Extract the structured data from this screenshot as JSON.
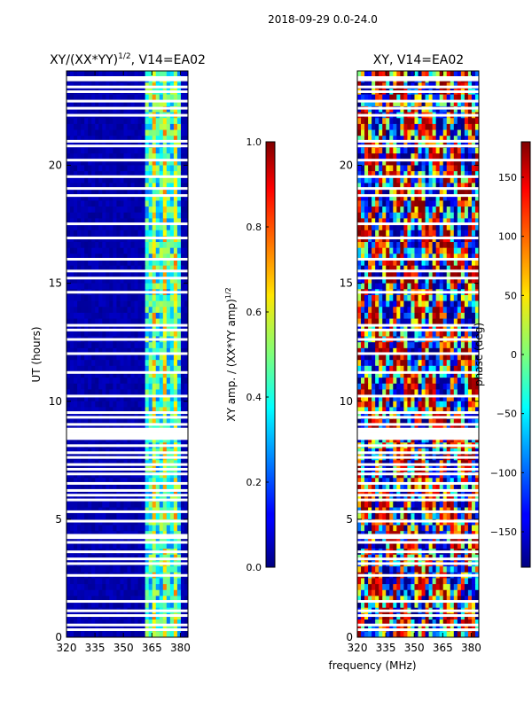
{
  "suptitle": "2018-09-29 0.0-24.0",
  "xlabel": "frequency (MHz)",
  "colors": {
    "low": "#00008f",
    "high": "#7f0000"
  },
  "chart_data": [
    {
      "type": "heatmap",
      "title": "XY/(XX*YY)",
      "title_sup": "1/2",
      "title_suffix": ", V14=EA02",
      "ylabel": "UT (hours)",
      "xlim": [
        320,
        384
      ],
      "ylim": [
        0,
        24
      ],
      "xticks": [
        "320",
        "335",
        "350",
        "365",
        "380"
      ],
      "xtick_values": [
        320,
        335,
        350,
        365,
        380
      ],
      "yticks": [
        "0",
        "5",
        "10",
        "15",
        "20"
      ],
      "ytick_values": [
        0,
        5,
        10,
        15,
        20
      ],
      "colorbar": {
        "label": "XY amp. / (XX*YY amp)",
        "label_sup": "1/2",
        "range": [
          0.0,
          1.0
        ],
        "ticks": [
          "0.0",
          "0.2",
          "0.4",
          "0.6",
          "0.8",
          "1.0"
        ],
        "tick_values": [
          0.0,
          0.2,
          0.4,
          0.6,
          0.8,
          1.0
        ]
      },
      "flagged_hours": [
        0.3,
        0.5,
        0.9,
        1.1,
        1.5,
        2.6,
        3.1,
        3.3,
        3.6,
        4.0,
        4.2,
        4.3,
        4.9,
        5.3,
        5.8,
        6.0,
        6.2,
        6.5,
        6.9,
        7.1,
        7.3,
        7.6,
        7.8,
        8.1,
        8.4,
        8.5,
        8.6,
        8.7,
        8.8,
        9.0,
        9.3,
        9.5,
        10.2,
        11.2,
        12.0,
        12.6,
        13.0,
        13.2,
        14.6,
        15.2,
        15.5,
        16.0,
        16.9,
        17.5,
        18.7,
        19.0,
        19.5,
        20.2,
        20.8,
        21.0,
        22.1,
        22.4,
        22.7,
        23.1,
        23.3,
        23.6,
        23.7
      ],
      "bright_band_MHz": [
        362,
        380
      ]
    },
    {
      "type": "heatmap",
      "title": "XY, V14=EA02",
      "ylabel": "",
      "xlim": [
        320,
        384
      ],
      "ylim": [
        0,
        24
      ],
      "xticks": [
        "320",
        "335",
        "350",
        "365",
        "380"
      ],
      "xtick_values": [
        320,
        335,
        350,
        365,
        380
      ],
      "yticks": [
        "0",
        "5",
        "10",
        "15",
        "20"
      ],
      "ytick_values": [
        0,
        5,
        10,
        15,
        20
      ],
      "colorbar": {
        "label": "phase (deg)",
        "range": [
          -180,
          180
        ],
        "ticks": [
          "−150",
          "−100",
          "−50",
          "0",
          "50",
          "100",
          "150"
        ],
        "tick_values": [
          -150,
          -100,
          -50,
          0,
          50,
          100,
          150
        ]
      },
      "flagged_hours": [
        0.3,
        0.5,
        0.9,
        1.1,
        1.5,
        2.6,
        3.1,
        3.3,
        3.6,
        4.0,
        4.2,
        4.3,
        4.9,
        5.3,
        5.8,
        6.0,
        6.2,
        6.5,
        6.9,
        7.1,
        7.3,
        7.6,
        7.8,
        8.1,
        8.4,
        8.5,
        8.6,
        8.7,
        8.8,
        9.0,
        9.3,
        9.5,
        10.2,
        11.2,
        12.0,
        12.6,
        13.0,
        13.2,
        14.6,
        15.2,
        15.5,
        16.0,
        16.9,
        17.5,
        18.7,
        19.0,
        19.5,
        20.2,
        20.8,
        21.0,
        22.1,
        22.4,
        22.7,
        23.1,
        23.3,
        23.6,
        23.7
      ]
    }
  ]
}
